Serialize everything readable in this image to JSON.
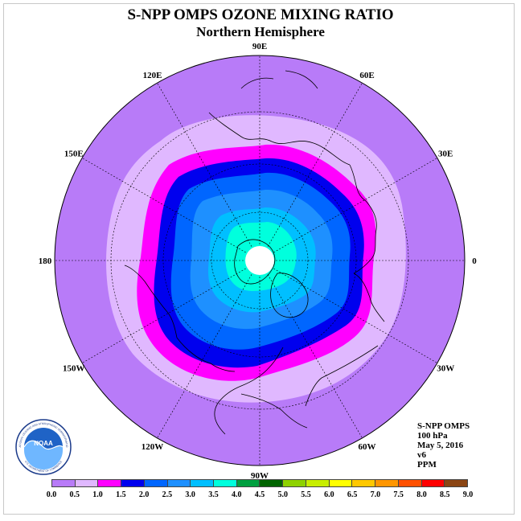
{
  "header": {
    "title": "S-NPP OMPS OZONE MIXING RATIO",
    "subtitle": "Northern Hemisphere"
  },
  "map": {
    "projection": "north-polar-stereographic",
    "longitude_labels": [
      "90E",
      "60E",
      "30E",
      "0",
      "30W",
      "60W",
      "90W",
      "120W",
      "150W",
      "180",
      "150E",
      "120E"
    ],
    "contour_levels_ppm": [
      0.5,
      1.0,
      1.5,
      2.0,
      2.5,
      3.0,
      3.5
    ],
    "field_summary": "ozone mixing ratio at 100 hPa, lowest at outer latitudes (0.0-0.5) increasing toward the pole (3.0-4.0), white missing-data disk at the pole"
  },
  "info": {
    "line1": "S-NPP OMPS",
    "line2": "100 hPa",
    "line3": "May 5, 2016",
    "line4": "v6",
    "line5": "PPM"
  },
  "colorbar": {
    "colors": [
      "#b87bf8",
      "#e0b8ff",
      "#ff00ff",
      "#0000ee",
      "#0066ff",
      "#1e90ff",
      "#00bfff",
      "#00ffdd",
      "#00a040",
      "#006400",
      "#8ed200",
      "#c8ee00",
      "#ffff00",
      "#ffc800",
      "#ff9600",
      "#ff5000",
      "#ff0000",
      "#8b4513"
    ],
    "ticks": [
      "0.0",
      "0.5",
      "1.0",
      "1.5",
      "2.0",
      "2.5",
      "3.0",
      "3.5",
      "4.0",
      "4.5",
      "5.0",
      "5.5",
      "6.0",
      "6.5",
      "7.0",
      "7.5",
      "8.0",
      "8.5",
      "9.0"
    ]
  },
  "logo": {
    "text": "NOAA",
    "ring_text_top": "NATIONAL OCEANIC AND ATMOSPHERIC ADMINISTRATION",
    "ring_text_bottom": "U.S. DEPARTMENT OF COMMERCE"
  }
}
